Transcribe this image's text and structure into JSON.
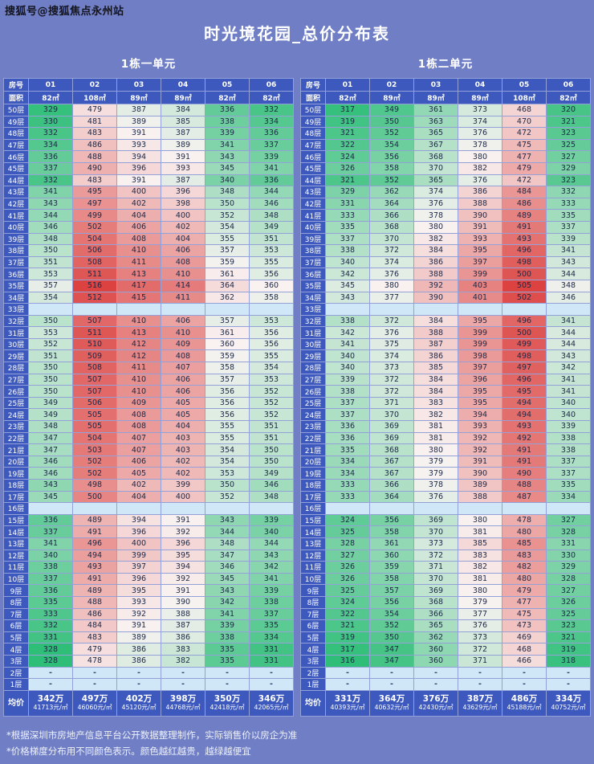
{
  "watermark": "搜狐号@搜狐焦点永州站",
  "title": "时光境花园_总价分布表",
  "labels": {
    "room": "房号",
    "area": "面积",
    "avg": "均价",
    "floor_suffix": "层",
    "price_unit": "万"
  },
  "colors": {
    "page_bg": "#6f7ec5",
    "header_blue": "#3d59bd",
    "cheap_green": "#2fbe78",
    "mid_white": "#f9f3f2",
    "expensive_red": "#db4240",
    "empty_blue": "#cfe7f6",
    "gridline": "#94a1d8"
  },
  "legend_notes": [
    "*根据深圳市房地产信息平台公开数据整理制作，实际销售价以房企为准",
    "*价格梯度分布用不同颜色表示。颜色越红越贵，越绿越便宜"
  ],
  "chart_data": [
    {
      "type": "heatmap",
      "title": "1栋一单元",
      "value_unit": "万元 (total price)",
      "color_rule": "redder = higher price per ㎡, greener = cheaper",
      "columns": [
        "01",
        "02",
        "03",
        "04",
        "05",
        "06"
      ],
      "area_labels": [
        "82㎡",
        "108㎡",
        "89㎡",
        "89㎡",
        "82㎡",
        "82㎡"
      ],
      "areas_sqm": [
        82,
        108,
        89,
        89,
        82,
        82
      ],
      "floors": [
        "50层",
        "49层",
        "48层",
        "47层",
        "46层",
        "45层",
        "44层",
        "43层",
        "42层",
        "41层",
        "40层",
        "39层",
        "38层",
        "37层",
        "36层",
        "35层",
        "34层",
        "33层",
        "32层",
        "31层",
        "30层",
        "29层",
        "28层",
        "27层",
        "26层",
        "25层",
        "24层",
        "23层",
        "22层",
        "21层",
        "20层",
        "19层",
        "18层",
        "17层",
        "16层",
        "15层",
        "14层",
        "13层",
        "12层",
        "11层",
        "10层",
        "9层",
        "8层",
        "7层",
        "6层",
        "5层",
        "4层",
        "3层",
        "2层",
        "1层"
      ],
      "rows": [
        [
          329,
          479,
          387,
          384,
          336,
          332
        ],
        [
          330,
          481,
          389,
          385,
          338,
          334
        ],
        [
          332,
          483,
          391,
          387,
          339,
          336
        ],
        [
          334,
          486,
          393,
          389,
          341,
          337
        ],
        [
          336,
          488,
          394,
          391,
          343,
          339
        ],
        [
          337,
          490,
          396,
          393,
          345,
          341
        ],
        [
          332,
          483,
          391,
          387,
          340,
          336
        ],
        [
          341,
          495,
          400,
          396,
          348,
          344
        ],
        [
          343,
          497,
          402,
          398,
          350,
          346
        ],
        [
          344,
          499,
          404,
          400,
          352,
          348
        ],
        [
          346,
          502,
          406,
          402,
          354,
          349
        ],
        [
          348,
          504,
          408,
          404,
          355,
          351
        ],
        [
          350,
          506,
          410,
          406,
          357,
          353
        ],
        [
          351,
          508,
          411,
          408,
          359,
          355
        ],
        [
          353,
          511,
          413,
          410,
          361,
          356
        ],
        [
          357,
          516,
          417,
          414,
          364,
          360
        ],
        [
          354,
          512,
          415,
          411,
          362,
          358
        ],
        [
          "",
          "",
          "",
          "",
          "",
          ""
        ],
        [
          350,
          507,
          410,
          406,
          357,
          353
        ],
        [
          353,
          511,
          413,
          410,
          361,
          356
        ],
        [
          352,
          510,
          412,
          409,
          360,
          356
        ],
        [
          351,
          509,
          412,
          408,
          359,
          355
        ],
        [
          350,
          508,
          411,
          407,
          358,
          354
        ],
        [
          350,
          507,
          410,
          406,
          357,
          353
        ],
        [
          350,
          507,
          410,
          406,
          356,
          352
        ],
        [
          349,
          506,
          409,
          405,
          356,
          352
        ],
        [
          349,
          505,
          408,
          405,
          356,
          352
        ],
        [
          348,
          505,
          408,
          404,
          355,
          351
        ],
        [
          347,
          504,
          407,
          403,
          355,
          351
        ],
        [
          347,
          503,
          407,
          403,
          354,
          350
        ],
        [
          346,
          502,
          406,
          402,
          354,
          350
        ],
        [
          346,
          502,
          405,
          402,
          353,
          349
        ],
        [
          343,
          498,
          402,
          399,
          350,
          346
        ],
        [
          345,
          500,
          404,
          400,
          352,
          348
        ],
        [
          "",
          "",
          "",
          "",
          "",
          ""
        ],
        [
          336,
          489,
          394,
          391,
          343,
          339
        ],
        [
          337,
          491,
          396,
          392,
          344,
          340
        ],
        [
          341,
          496,
          400,
          396,
          348,
          344
        ],
        [
          340,
          494,
          399,
          395,
          347,
          343
        ],
        [
          338,
          493,
          397,
          394,
          346,
          342
        ],
        [
          337,
          491,
          396,
          392,
          345,
          341
        ],
        [
          336,
          489,
          395,
          391,
          343,
          339
        ],
        [
          335,
          488,
          393,
          390,
          342,
          338
        ],
        [
          333,
          486,
          392,
          388,
          341,
          337
        ],
        [
          332,
          484,
          391,
          387,
          339,
          335
        ],
        [
          331,
          483,
          389,
          386,
          338,
          334
        ],
        [
          328,
          479,
          386,
          383,
          335,
          331
        ],
        [
          328,
          478,
          386,
          382,
          335,
          331
        ],
        [
          "-",
          "-",
          "-",
          "-",
          "-",
          "-"
        ],
        [
          "-",
          "-",
          "-",
          "-",
          "-",
          "-"
        ]
      ],
      "avg_price": [
        "342万",
        "497万",
        "402万",
        "398万",
        "350万",
        "346万"
      ],
      "avg_unit_price": [
        "41713元/㎡",
        "46060元/㎡",
        "45120元/㎡",
        "44768元/㎡",
        "42418元/㎡",
        "42065元/㎡"
      ]
    },
    {
      "type": "heatmap",
      "title": "1栋二单元",
      "value_unit": "万元 (total price)",
      "color_rule": "redder = higher price per ㎡, greener = cheaper",
      "columns": [
        "01",
        "02",
        "03",
        "04",
        "05",
        "06"
      ],
      "area_labels": [
        "82㎡",
        "89㎡",
        "89㎡",
        "89㎡",
        "108㎡",
        "82㎡"
      ],
      "areas_sqm": [
        82,
        89,
        89,
        89,
        108,
        82
      ],
      "floors": [
        "50层",
        "49层",
        "48层",
        "47层",
        "46层",
        "45层",
        "44层",
        "43层",
        "42层",
        "41层",
        "40层",
        "39层",
        "38层",
        "37层",
        "36层",
        "35层",
        "34层",
        "33层",
        "32层",
        "31层",
        "30层",
        "29层",
        "28层",
        "27层",
        "26层",
        "25层",
        "24层",
        "23层",
        "22层",
        "21层",
        "20层",
        "19层",
        "18层",
        "17层",
        "16层",
        "15层",
        "14层",
        "13层",
        "12层",
        "11层",
        "10层",
        "9层",
        "8层",
        "7层",
        "6层",
        "5层",
        "4层",
        "3层",
        "2层",
        "1层"
      ],
      "rows": [
        [
          317,
          349,
          361,
          373,
          468,
          320
        ],
        [
          319,
          350,
          363,
          374,
          470,
          321
        ],
        [
          321,
          352,
          365,
          376,
          472,
          323
        ],
        [
          322,
          354,
          367,
          378,
          475,
          325
        ],
        [
          324,
          356,
          368,
          380,
          477,
          327
        ],
        [
          326,
          358,
          370,
          382,
          479,
          329
        ],
        [
          321,
          352,
          365,
          376,
          472,
          323
        ],
        [
          329,
          362,
          374,
          386,
          484,
          332
        ],
        [
          331,
          364,
          376,
          388,
          486,
          333
        ],
        [
          333,
          366,
          378,
          390,
          489,
          335
        ],
        [
          335,
          368,
          380,
          391,
          491,
          337
        ],
        [
          337,
          370,
          382,
          393,
          493,
          339
        ],
        [
          338,
          372,
          384,
          395,
          496,
          341
        ],
        [
          340,
          374,
          386,
          397,
          498,
          343
        ],
        [
          342,
          376,
          388,
          399,
          500,
          344
        ],
        [
          345,
          380,
          392,
          403,
          505,
          348
        ],
        [
          343,
          377,
          390,
          401,
          502,
          346
        ],
        [
          "",
          "",
          "",
          "",
          "",
          ""
        ],
        [
          338,
          372,
          384,
          395,
          496,
          341
        ],
        [
          342,
          376,
          388,
          399,
          500,
          344
        ],
        [
          341,
          375,
          387,
          399,
          499,
          344
        ],
        [
          340,
          374,
          386,
          398,
          498,
          343
        ],
        [
          340,
          373,
          385,
          397,
          497,
          342
        ],
        [
          339,
          372,
          384,
          396,
          496,
          341
        ],
        [
          338,
          372,
          384,
          395,
          495,
          341
        ],
        [
          337,
          371,
          383,
          395,
          494,
          340
        ],
        [
          337,
          370,
          382,
          394,
          494,
          340
        ],
        [
          336,
          369,
          381,
          393,
          493,
          339
        ],
        [
          336,
          369,
          381,
          392,
          492,
          338
        ],
        [
          335,
          368,
          380,
          392,
          491,
          338
        ],
        [
          334,
          367,
          379,
          391,
          491,
          337
        ],
        [
          334,
          367,
          379,
          390,
          490,
          337
        ],
        [
          333,
          366,
          378,
          389,
          488,
          335
        ],
        [
          333,
          364,
          376,
          388,
          487,
          334
        ],
        [
          "",
          "",
          "",
          "",
          "",
          ""
        ],
        [
          324,
          356,
          369,
          380,
          478,
          327
        ],
        [
          325,
          358,
          370,
          381,
          480,
          328
        ],
        [
          328,
          361,
          373,
          385,
          485,
          331
        ],
        [
          327,
          360,
          372,
          383,
          483,
          330
        ],
        [
          326,
          359,
          371,
          382,
          482,
          329
        ],
        [
          326,
          358,
          370,
          381,
          480,
          328
        ],
        [
          325,
          357,
          369,
          380,
          479,
          327
        ],
        [
          324,
          356,
          368,
          379,
          477,
          326
        ],
        [
          322,
          354,
          366,
          377,
          475,
          325
        ],
        [
          321,
          352,
          365,
          376,
          473,
          323
        ],
        [
          319,
          350,
          362,
          373,
          469,
          321
        ],
        [
          317,
          347,
          360,
          372,
          468,
          319
        ],
        [
          316,
          347,
          360,
          371,
          466,
          318
        ],
        [
          "-",
          "-",
          "-",
          "-",
          "-",
          "-"
        ],
        [
          "-",
          "-",
          "-",
          "-",
          "-",
          "-"
        ]
      ],
      "avg_price": [
        "331万",
        "364万",
        "376万",
        "387万",
        "486万",
        "334万"
      ],
      "avg_unit_price": [
        "40393元/㎡",
        "40632元/㎡",
        "42430元/㎡",
        "43629元/㎡",
        "45188元/㎡",
        "40752元/㎡"
      ]
    }
  ]
}
